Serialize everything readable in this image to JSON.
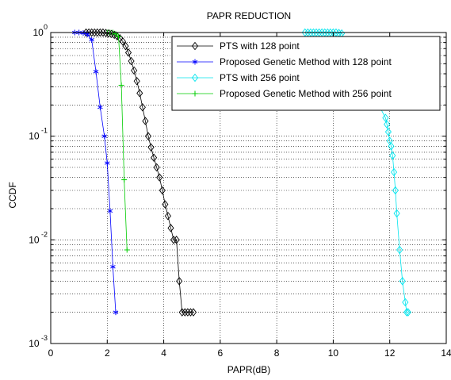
{
  "chart_data": {
    "type": "line",
    "title": "PAPR REDUCTION",
    "xlabel": "PAPR(dB)",
    "ylabel": "CCDF",
    "xlim": [
      0,
      14
    ],
    "ylim": [
      0.001,
      1
    ],
    "yscale": "log",
    "grid": true,
    "legend_position": "top-right",
    "x_ticks": [
      0,
      2,
      4,
      6,
      8,
      10,
      12,
      14
    ],
    "x_tick_labels": [
      "0",
      "2",
      "4",
      "6",
      "8",
      "10",
      "12",
      "14"
    ],
    "y_ticks": [
      0.001,
      0.01,
      0.1,
      1
    ],
    "y_tick_labels": [
      {
        "base": "10",
        "exp": "-3"
      },
      {
        "base": "10",
        "exp": "-2"
      },
      {
        "base": "10",
        "exp": "-1"
      },
      {
        "base": "10",
        "exp": "0"
      }
    ],
    "series": [
      {
        "name": "PTS with 128 point",
        "color": "#000000",
        "marker": "diamond",
        "x": [
          1.25,
          1.35,
          1.45,
          1.55,
          1.65,
          1.75,
          1.85,
          1.95,
          2.05,
          2.15,
          2.25,
          2.35,
          2.45,
          2.55,
          2.65,
          2.75,
          2.85,
          2.95,
          3.05,
          3.15,
          3.25,
          3.35,
          3.45,
          3.55,
          3.65,
          3.75,
          3.85,
          3.95,
          4.05,
          4.15,
          4.25,
          4.35,
          4.45,
          4.55,
          4.65,
          4.75,
          4.85,
          4.95,
          5.05
        ],
        "y": [
          1.0,
          1.0,
          1.0,
          1.0,
          1.0,
          1.0,
          1.0,
          0.99,
          0.98,
          0.97,
          0.95,
          0.92,
          0.88,
          0.82,
          0.74,
          0.64,
          0.53,
          0.43,
          0.34,
          0.26,
          0.19,
          0.14,
          0.1,
          0.078,
          0.062,
          0.05,
          0.04,
          0.03,
          0.022,
          0.017,
          0.013,
          0.01,
          0.01,
          0.004,
          0.002,
          0.002,
          0.002,
          0.002,
          0.002
        ]
      },
      {
        "name": "Proposed Genetic Method with 128 point",
        "color": "#0000ff",
        "marker": "star",
        "x": [
          0.85,
          1.0,
          1.15,
          1.3,
          1.45,
          1.6,
          1.75,
          1.9,
          2.0,
          2.1,
          2.2,
          2.3
        ],
        "y": [
          1.0,
          1.0,
          0.99,
          0.96,
          0.85,
          0.42,
          0.19,
          0.1,
          0.055,
          0.019,
          0.0055,
          0.002
        ]
      },
      {
        "name": "PTS with 256 point",
        "color": "#00e5ee",
        "marker": "diamond",
        "x": [
          9.0,
          9.1,
          9.2,
          9.3,
          9.4,
          9.5,
          9.6,
          9.7,
          9.8,
          9.9,
          10.0,
          10.1,
          10.2,
          10.3,
          11.85,
          11.9,
          11.95,
          12.0,
          12.05,
          12.1,
          12.15,
          12.2,
          12.25,
          12.35,
          12.45,
          12.55,
          12.6,
          12.65
        ],
        "y": [
          1.0,
          1.0,
          1.0,
          1.0,
          1.0,
          1.0,
          1.0,
          1.0,
          1.0,
          1.0,
          1.0,
          1.0,
          0.99,
          0.98,
          0.15,
          0.13,
          0.11,
          0.09,
          0.08,
          0.065,
          0.045,
          0.03,
          0.018,
          0.008,
          0.004,
          0.0025,
          0.002,
          0.002
        ]
      },
      {
        "name": "Proposed Genetic Method with 256 point",
        "color": "#00cc00",
        "marker": "plus",
        "x": [
          2.0,
          2.1,
          2.2,
          2.3,
          2.4,
          2.5,
          2.6,
          2.7
        ],
        "y": [
          1.0,
          1.0,
          1.0,
          0.97,
          0.91,
          0.31,
          0.038,
          0.008
        ]
      }
    ]
  }
}
